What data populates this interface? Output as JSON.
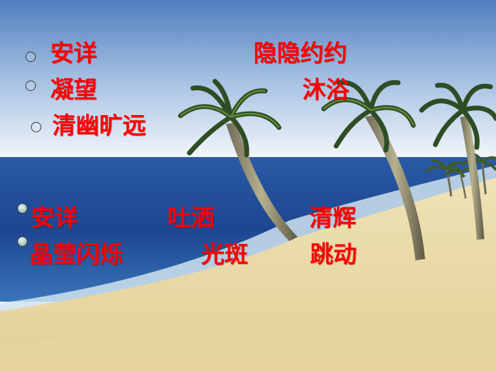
{
  "vocab_top": {
    "row1": [
      "安详",
      "隐隐约约"
    ],
    "row2": [
      "凝望",
      "沐浴"
    ],
    "row3": [
      "清幽旷远"
    ]
  },
  "vocab_bottom": {
    "row1": [
      "安详",
      "吐洒",
      "清辉"
    ],
    "row2": [
      "晶莹闪烁",
      "光斑",
      "跳动"
    ]
  },
  "colors": {
    "text": "#ff0000",
    "sky_top": "#5a86c2",
    "sky_bottom": "#f2f6fb",
    "sea": "#1f4f9a",
    "sand": "#e9d9a8"
  },
  "icons": [
    "hollow-circle-bullet",
    "filled-circle-bullet",
    "palm-tree"
  ]
}
